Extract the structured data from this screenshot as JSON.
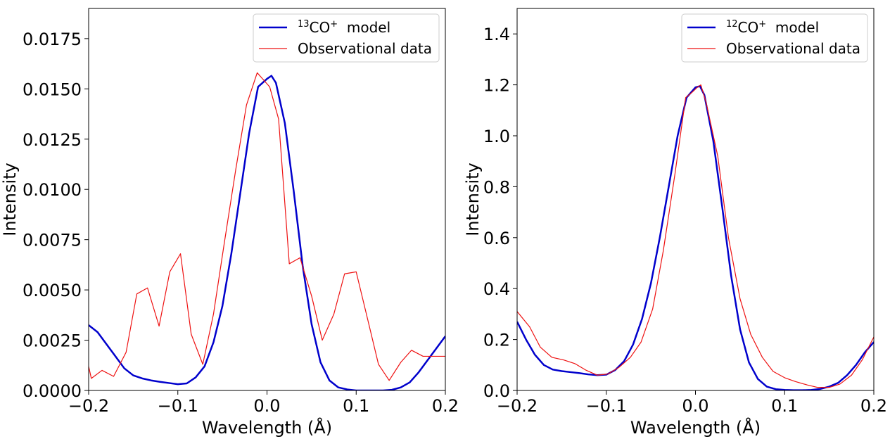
{
  "colors": {
    "model": "#0000cc",
    "observed": "#ee1111",
    "axis": "#000000",
    "legend_border": "#cccccc"
  },
  "chart_data": [
    {
      "type": "line",
      "xlabel": "Wavelength (Å)",
      "ylabel": "Intensity",
      "xlim": [
        -0.2,
        0.2
      ],
      "ylim": [
        0,
        0.019
      ],
      "xticks": [
        -0.2,
        -0.1,
        0.0,
        0.1,
        0.2
      ],
      "xtick_labels": [
        "−0.2",
        "−0.1",
        "0.0",
        "0.1",
        "0.2"
      ],
      "yticks": [
        0,
        0.0025,
        0.005,
        0.0075,
        0.01,
        0.0125,
        0.015,
        0.0175
      ],
      "ytick_labels": [
        "0.0000",
        "0.0025",
        "0.0050",
        "0.0075",
        "0.0100",
        "0.0125",
        "0.0150",
        "0.0175"
      ],
      "legend": {
        "position": "top-right",
        "model_sup": "13",
        "model_rest": "CO",
        "model_charge": "+",
        "model_suffix": "model",
        "observed_label": "Observational data"
      },
      "series": [
        {
          "name": "13CO+ model",
          "color_key": "model",
          "x": [
            -0.2,
            -0.19,
            -0.18,
            -0.17,
            -0.16,
            -0.15,
            -0.14,
            -0.13,
            -0.12,
            -0.11,
            -0.1,
            -0.09,
            -0.08,
            -0.07,
            -0.06,
            -0.05,
            -0.04,
            -0.03,
            -0.02,
            -0.01,
            0.0,
            0.005,
            0.01,
            0.02,
            0.03,
            0.04,
            0.05,
            0.06,
            0.07,
            0.08,
            0.09,
            0.1,
            0.11,
            0.12,
            0.13,
            0.14,
            0.15,
            0.16,
            0.17,
            0.18,
            0.19,
            0.2
          ],
          "y": [
            0.00325,
            0.0029,
            0.0023,
            0.0017,
            0.0011,
            0.00075,
            0.0006,
            0.0005,
            0.00043,
            0.00037,
            0.00031,
            0.00035,
            0.00065,
            0.0012,
            0.0024,
            0.0042,
            0.0068,
            0.0098,
            0.0128,
            0.0151,
            0.0155,
            0.01565,
            0.0153,
            0.0133,
            0.0099,
            0.0062,
            0.0033,
            0.0014,
            0.0005,
            0.00015,
            5e-05,
            0.0,
            0.0,
            0.0,
            0.0,
            3e-05,
            0.00015,
            0.0004,
            0.0009,
            0.0015,
            0.0021,
            0.0027
          ]
        },
        {
          "name": "Observational data",
          "color_key": "observed",
          "x": [
            -0.2,
            -0.197,
            -0.185,
            -0.172,
            -0.158,
            -0.146,
            -0.134,
            -0.121,
            -0.109,
            -0.097,
            -0.085,
            -0.072,
            -0.06,
            -0.048,
            -0.035,
            -0.023,
            -0.011,
            -0.005,
            0.003,
            0.013,
            0.025,
            0.037,
            0.05,
            0.062,
            0.075,
            0.087,
            0.1,
            0.112,
            0.125,
            0.137,
            0.15,
            0.162,
            0.175,
            0.187,
            0.2
          ],
          "y": [
            0.0012,
            0.0006,
            0.001,
            0.0007,
            0.0019,
            0.0048,
            0.0051,
            0.0032,
            0.0059,
            0.0068,
            0.0028,
            0.0013,
            0.0038,
            0.0073,
            0.011,
            0.0142,
            0.0158,
            0.0155,
            0.0151,
            0.0135,
            0.0063,
            0.0066,
            0.0047,
            0.0025,
            0.0038,
            0.0058,
            0.0059,
            0.0037,
            0.0013,
            0.0005,
            0.0014,
            0.002,
            0.0017,
            0.0017,
            0.0017
          ]
        }
      ]
    },
    {
      "type": "line",
      "xlabel": "Wavelength (Å)",
      "ylabel": "Intensity",
      "xlim": [
        -0.2,
        0.2
      ],
      "ylim": [
        0,
        1.5
      ],
      "xticks": [
        -0.2,
        -0.1,
        0.0,
        0.1,
        0.2
      ],
      "xtick_labels": [
        "−0.2",
        "−0.1",
        "0.0",
        "0.1",
        "0.2"
      ],
      "yticks": [
        0,
        0.2,
        0.4,
        0.6,
        0.8,
        1.0,
        1.2,
        1.4
      ],
      "ytick_labels": [
        "0.0",
        "0.2",
        "0.4",
        "0.6",
        "0.8",
        "1.0",
        "1.2",
        "1.4"
      ],
      "legend": {
        "position": "top-right",
        "model_sup": "12",
        "model_rest": "CO",
        "model_charge": "+",
        "model_suffix": "model",
        "observed_label": "Observational data"
      },
      "series": [
        {
          "name": "12CO+ model",
          "color_key": "model",
          "x": [
            -0.2,
            -0.19,
            -0.18,
            -0.17,
            -0.16,
            -0.15,
            -0.14,
            -0.13,
            -0.12,
            -0.11,
            -0.1,
            -0.09,
            -0.08,
            -0.07,
            -0.06,
            -0.05,
            -0.04,
            -0.03,
            -0.02,
            -0.01,
            0.0,
            0.005,
            0.01,
            0.02,
            0.03,
            0.04,
            0.05,
            0.06,
            0.07,
            0.08,
            0.09,
            0.1,
            0.11,
            0.12,
            0.13,
            0.14,
            0.15,
            0.16,
            0.17,
            0.18,
            0.19,
            0.2
          ],
          "y": [
            0.27,
            0.2,
            0.14,
            0.1,
            0.082,
            0.076,
            0.072,
            0.068,
            0.063,
            0.06,
            0.062,
            0.08,
            0.115,
            0.18,
            0.28,
            0.42,
            0.6,
            0.8,
            1.0,
            1.15,
            1.19,
            1.195,
            1.16,
            0.98,
            0.72,
            0.45,
            0.24,
            0.11,
            0.045,
            0.015,
            0.005,
            0.002,
            0.001,
            0.001,
            0.002,
            0.006,
            0.015,
            0.03,
            0.06,
            0.1,
            0.15,
            0.19
          ]
        },
        {
          "name": "Observational data",
          "color_key": "observed",
          "x": [
            -0.2,
            -0.186,
            -0.174,
            -0.161,
            -0.148,
            -0.135,
            -0.123,
            -0.11,
            -0.098,
            -0.086,
            -0.073,
            -0.061,
            -0.048,
            -0.036,
            -0.023,
            -0.011,
            -0.004,
            0.002,
            0.006,
            0.012,
            0.025,
            0.037,
            0.05,
            0.062,
            0.075,
            0.087,
            0.1,
            0.112,
            0.125,
            0.137,
            0.15,
            0.162,
            0.175,
            0.187,
            0.2
          ],
          "y": [
            0.31,
            0.25,
            0.17,
            0.13,
            0.12,
            0.105,
            0.08,
            0.06,
            0.065,
            0.09,
            0.13,
            0.19,
            0.32,
            0.55,
            0.85,
            1.15,
            1.17,
            1.19,
            1.2,
            1.13,
            0.92,
            0.6,
            0.36,
            0.22,
            0.13,
            0.075,
            0.05,
            0.035,
            0.022,
            0.012,
            0.012,
            0.025,
            0.06,
            0.12,
            0.21
          ]
        }
      ]
    }
  ]
}
